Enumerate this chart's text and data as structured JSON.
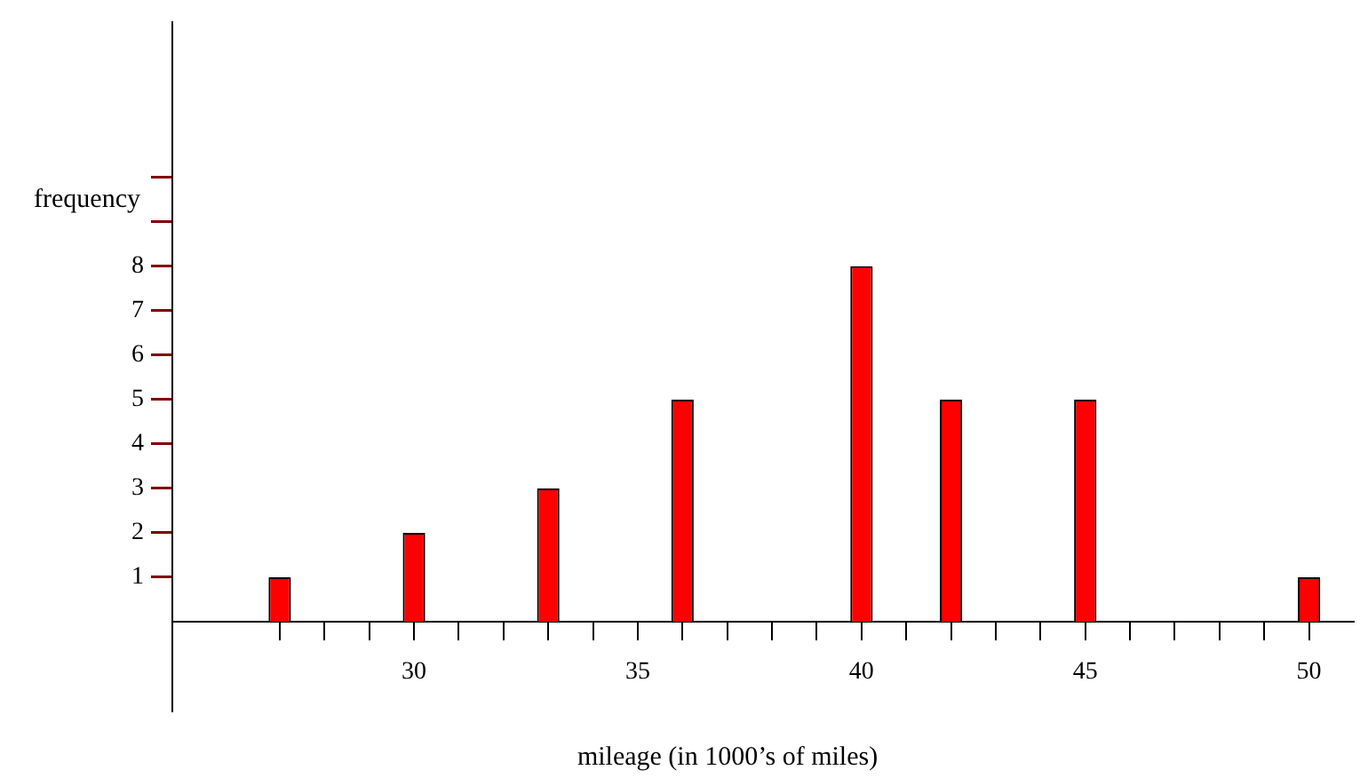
{
  "chart_data": {
    "type": "bar",
    "xlabel": "mileage (in 1000’s of miles)",
    "ylabel": "frequency",
    "x": [
      27,
      30,
      33,
      36,
      40,
      42,
      45,
      50
    ],
    "values": [
      1,
      2,
      3,
      5,
      8,
      5,
      5,
      1
    ],
    "color": "#ff0000",
    "xlim": [
      24.6,
      51
    ],
    "xticks": [
      {
        "value": 27,
        "label": null
      },
      {
        "value": 28,
        "label": null
      },
      {
        "value": 29,
        "label": null
      },
      30,
      {
        "value": 31,
        "label": null
      },
      {
        "value": 32,
        "label": null
      },
      {
        "value": 33,
        "label": null
      },
      {
        "value": 34,
        "label": null
      },
      35,
      {
        "value": 36,
        "label": null
      },
      {
        "value": 37,
        "label": null
      },
      {
        "value": 38,
        "label": null
      },
      {
        "value": 39,
        "label": null
      },
      40,
      {
        "value": 41,
        "label": null
      },
      {
        "value": 42,
        "label": null
      },
      {
        "value": 43,
        "label": null
      },
      {
        "value": 44,
        "label": null
      },
      45,
      {
        "value": 46,
        "label": null
      },
      {
        "value": 47,
        "label": null
      },
      {
        "value": 48,
        "label": null
      },
      {
        "value": 49,
        "label": null
      },
      50
    ],
    "ylim": [
      -2,
      13.5
    ],
    "yticks": [
      1,
      2,
      3,
      4,
      5,
      6,
      7,
      8,
      {
        "value": 9,
        "label": null
      },
      {
        "value": 10,
        "label": null
      }
    ],
    "grid": false,
    "legend": false
  }
}
